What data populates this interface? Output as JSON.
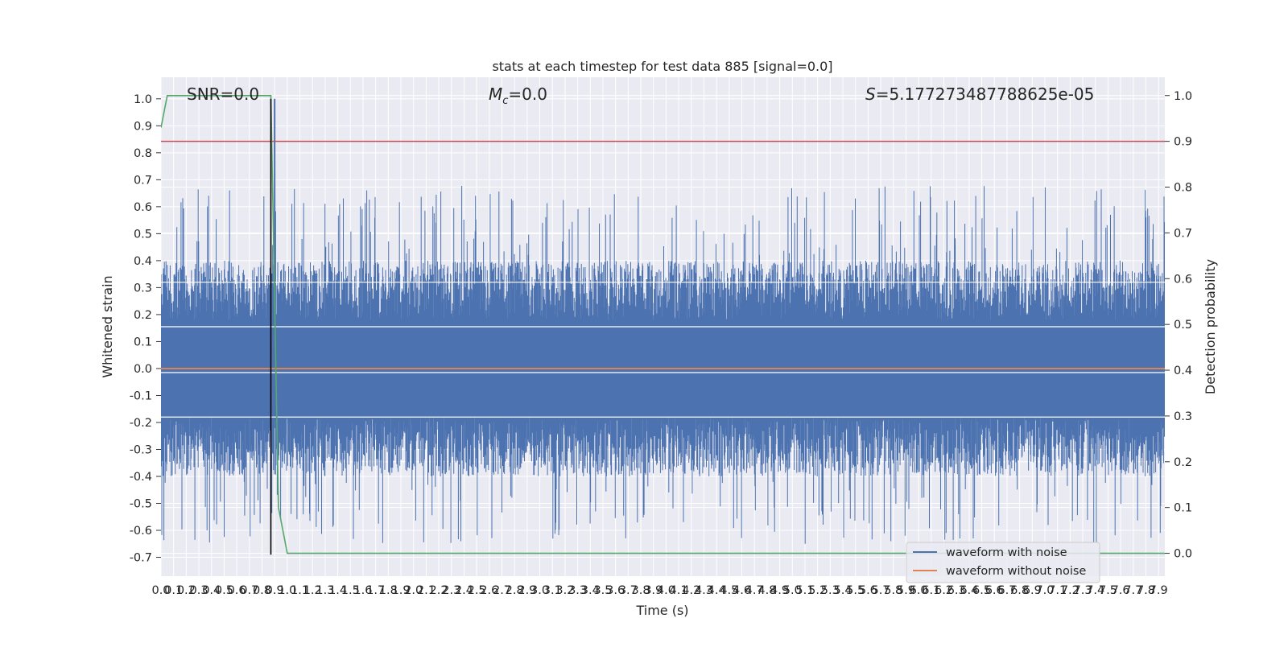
{
  "chart_data": {
    "type": "line",
    "title": "stats at each timestep for test data 885 [signal=0.0]",
    "xlabel": "Time (s)",
    "ylabel_left": "Whitened strain",
    "ylabel_right": "Detection probability",
    "xlim": [
      0.0,
      7.95
    ],
    "ylim_left": [
      -0.77,
      1.08
    ],
    "ylim_right": [
      -0.05,
      1.04
    ],
    "x_ticks": [
      0.0,
      0.1,
      0.2,
      0.3,
      0.4,
      0.5,
      0.6,
      0.7,
      0.8,
      0.9,
      1.0,
      1.1,
      1.2,
      1.3,
      1.4,
      1.5,
      1.6,
      1.7,
      1.8,
      1.9,
      2.0,
      2.1,
      2.2,
      2.3,
      2.4,
      2.5,
      2.6,
      2.7,
      2.8,
      2.9,
      3.0,
      3.1,
      3.2,
      3.3,
      3.4,
      3.5,
      3.6,
      3.7,
      3.8,
      3.9,
      4.0,
      4.1,
      4.2,
      4.3,
      4.4,
      4.5,
      4.6,
      4.7,
      4.8,
      4.9,
      5.0,
      5.1,
      5.2,
      5.3,
      5.4,
      5.5,
      5.6,
      5.7,
      5.8,
      5.9,
      6.0,
      6.1,
      6.2,
      6.3,
      6.4,
      6.5,
      6.6,
      6.7,
      6.8,
      6.9,
      7.0,
      7.1,
      7.2,
      7.3,
      7.4,
      7.5,
      7.6,
      7.7,
      7.8,
      7.9
    ],
    "left_ticks": [
      1.0,
      0.9,
      0.8,
      0.7,
      0.6,
      0.5,
      0.4,
      0.3,
      0.2,
      0.1,
      0.0,
      -0.1,
      -0.2,
      -0.3,
      -0.4,
      -0.5,
      -0.6,
      -0.7
    ],
    "right_ticks": [
      1.0,
      0.9,
      0.8,
      0.7,
      0.6,
      0.5,
      0.4,
      0.3,
      0.2,
      0.1,
      0.0
    ],
    "series": [
      {
        "name": "waveform with noise",
        "color": "#4c72b0",
        "axis": "left",
        "kind": "noise",
        "peak_envelope": [
          0.71,
          -0.68
        ]
      },
      {
        "name": "waveform without noise",
        "color": "#dd8452",
        "axis": "left",
        "x": [
          0.0,
          7.95
        ],
        "y": [
          0.0,
          0.0
        ]
      },
      {
        "color": "#55a868",
        "axis": "right",
        "x": [
          0.0,
          0.05,
          0.1,
          0.15,
          0.87,
          0.93,
          1.0,
          7.95
        ],
        "y": [
          0.93,
          1.0,
          1.0,
          1.0,
          1.0,
          0.1,
          0.0,
          0.0
        ]
      }
    ],
    "threshold_line": {
      "axis": "right",
      "value": 0.9,
      "color": "#c44e52"
    },
    "vertical_marker": {
      "x": 0.87,
      "y_range": [
        -0.69,
        1.0
      ],
      "color": "#000000"
    },
    "spike": {
      "x": 0.9,
      "y_range": [
        -0.17,
        1.0
      ]
    },
    "annotations": {
      "snr": "SNR=0.0",
      "mc_symbol": "M",
      "mc_sub": "c",
      "mc_value": "=0.0",
      "s_symbol": "S",
      "s_value": "=5.177273487788625e-05"
    },
    "legend": {
      "placement": "lower-right"
    },
    "grid": true,
    "background": "#eaeaf2"
  }
}
